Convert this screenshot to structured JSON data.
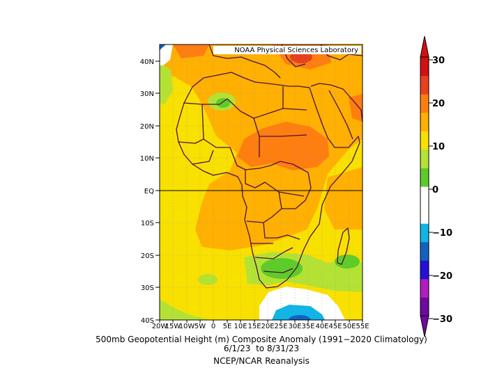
{
  "credit": "NOAA Physical Sciences Laboratory",
  "map": {
    "lat_ticks": [
      "40N",
      "30N",
      "20N",
      "10N",
      "EQ",
      "10S",
      "20S",
      "30S",
      "40S"
    ],
    "lon_ticks": [
      "20W",
      "15W",
      "10W",
      "5W",
      "0",
      "5E",
      "10E",
      "15E",
      "20E",
      "25E",
      "30E",
      "35E",
      "40E",
      "45E",
      "50E",
      "55E"
    ],
    "extent": {
      "lon": [
        -20,
        55
      ],
      "lat": [
        -40,
        45
      ]
    }
  },
  "colorbar": {
    "labels": [
      "30",
      "20",
      "10",
      "0",
      "−10",
      "−20",
      "−30"
    ],
    "colors": [
      "#6e0aa0",
      "#b21cc0",
      "#2410d8",
      "#1262c0",
      "#10b4e6",
      "#ffffff",
      "#ffffff",
      "#5ecc28",
      "#b4e234",
      "#f8e000",
      "#ffb000",
      "#ff7e10",
      "#e8401c",
      "#d41010"
    ]
  },
  "caption": {
    "line1": "500mb Geopotential Height (m) Composite Anomaly (1991−2020 Climatology)",
    "line2": "6/1/23  to 8/31/23",
    "line3": "NCEP/NCAR Reanalysis"
  }
}
